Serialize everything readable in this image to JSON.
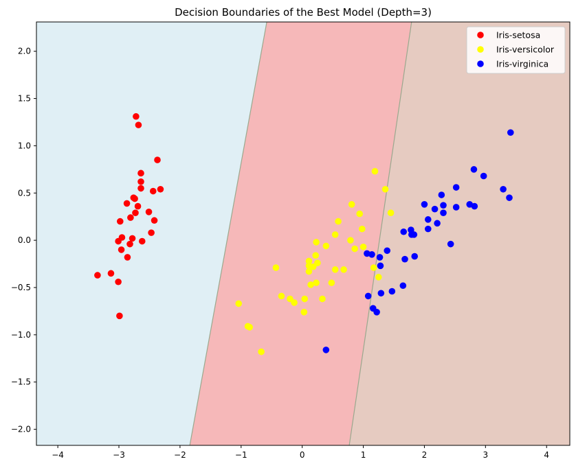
{
  "chart_data": {
    "type": "scatter",
    "title": "Decision Boundaries of the Best Model (Depth=3)",
    "xlabel": "",
    "ylabel": "",
    "xlim": [
      -4.35,
      4.38
    ],
    "ylim": [
      -2.17,
      2.31
    ],
    "xticks": [
      -4,
      -3,
      -2,
      -1,
      0,
      1,
      2,
      3,
      4
    ],
    "xtick_labels": [
      "−4",
      "−3",
      "−2",
      "−1",
      "0",
      "1",
      "2",
      "3",
      "4"
    ],
    "yticks": [
      -2.0,
      -1.5,
      -1.0,
      -0.5,
      0.0,
      0.5,
      1.0,
      1.5,
      2.0
    ],
    "ytick_labels": [
      "−2.0",
      "−1.5",
      "−1.0",
      "−0.5",
      "0.0",
      "0.5",
      "1.0",
      "1.5",
      "2.0"
    ],
    "grid": false,
    "legend_position": "top-right",
    "regions": [
      {
        "class": "Iris-setosa",
        "color": "#e0eff5"
      },
      {
        "class": "Iris-versicolor",
        "color": "#f6b8b9"
      },
      {
        "class": "Iris-virginica",
        "color": "#e6cbc1"
      }
    ],
    "boundaries": [
      {
        "top": [
          -0.58,
          2.31
        ],
        "bottom": [
          -1.84,
          -2.17
        ]
      },
      {
        "top": [
          1.79,
          2.31
        ],
        "bottom": [
          0.77,
          -2.17
        ]
      }
    ],
    "series": [
      {
        "name": "Iris-setosa",
        "color": "#ff0000",
        "points": [
          [
            -2.72,
            1.31
          ],
          [
            -2.68,
            1.22
          ],
          [
            -2.37,
            0.85
          ],
          [
            -2.64,
            0.71
          ],
          [
            -2.64,
            0.62
          ],
          [
            -2.32,
            0.54
          ],
          [
            -2.64,
            0.55
          ],
          [
            -2.44,
            0.52
          ],
          [
            -2.76,
            0.45
          ],
          [
            -2.74,
            0.44
          ],
          [
            -2.87,
            0.39
          ],
          [
            -2.69,
            0.36
          ],
          [
            -2.51,
            0.3
          ],
          [
            -2.73,
            0.29
          ],
          [
            -2.81,
            0.24
          ],
          [
            -2.98,
            0.2
          ],
          [
            -2.42,
            0.21
          ],
          [
            -2.47,
            0.08
          ],
          [
            -2.95,
            0.03
          ],
          [
            -2.78,
            0.02
          ],
          [
            -3.01,
            -0.01
          ],
          [
            -2.62,
            -0.01
          ],
          [
            -2.82,
            -0.04
          ],
          [
            -2.96,
            -0.1
          ],
          [
            -2.86,
            -0.18
          ],
          [
            -3.35,
            -0.37
          ],
          [
            -3.13,
            -0.35
          ],
          [
            -3.01,
            -0.44
          ],
          [
            -2.99,
            -0.8
          ]
        ]
      },
      {
        "name": "Iris-versicolor",
        "color": "#ffff00",
        "points": [
          [
            1.19,
            0.73
          ],
          [
            1.36,
            0.54
          ],
          [
            0.81,
            0.38
          ],
          [
            1.45,
            0.29
          ],
          [
            0.94,
            0.28
          ],
          [
            0.59,
            0.2
          ],
          [
            0.98,
            0.12
          ],
          [
            0.54,
            0.06
          ],
          [
            0.79,
            0.0
          ],
          [
            0.23,
            -0.02
          ],
          [
            0.39,
            -0.06
          ],
          [
            1.0,
            -0.07
          ],
          [
            0.86,
            -0.09
          ],
          [
            0.22,
            -0.16
          ],
          [
            0.25,
            -0.24
          ],
          [
            0.11,
            -0.22
          ],
          [
            0.11,
            -0.27
          ],
          [
            0.18,
            -0.28
          ],
          [
            1.17,
            -0.29
          ],
          [
            -0.43,
            -0.29
          ],
          [
            0.68,
            -0.31
          ],
          [
            0.54,
            -0.31
          ],
          [
            0.11,
            -0.33
          ],
          [
            1.25,
            -0.39
          ],
          [
            0.48,
            -0.45
          ],
          [
            0.23,
            -0.45
          ],
          [
            0.14,
            -0.47
          ],
          [
            -0.34,
            -0.59
          ],
          [
            -0.2,
            -0.62
          ],
          [
            0.04,
            -0.62
          ],
          [
            0.33,
            -0.62
          ],
          [
            -0.13,
            -0.66
          ],
          [
            -1.04,
            -0.67
          ],
          [
            0.03,
            -0.76
          ],
          [
            -0.89,
            -0.91
          ],
          [
            -0.86,
            -0.92
          ],
          [
            -0.67,
            -1.18
          ]
        ]
      },
      {
        "name": "Iris-virginica",
        "color": "#0000ff",
        "points": [
          [
            3.41,
            1.14
          ],
          [
            2.81,
            0.75
          ],
          [
            2.97,
            0.68
          ],
          [
            2.52,
            0.56
          ],
          [
            3.29,
            0.54
          ],
          [
            2.28,
            0.48
          ],
          [
            3.39,
            0.45
          ],
          [
            2.74,
            0.38
          ],
          [
            2.0,
            0.38
          ],
          [
            2.82,
            0.36
          ],
          [
            2.31,
            0.37
          ],
          [
            2.52,
            0.35
          ],
          [
            2.17,
            0.33
          ],
          [
            2.31,
            0.29
          ],
          [
            2.06,
            0.22
          ],
          [
            2.21,
            0.18
          ],
          [
            2.06,
            0.12
          ],
          [
            1.78,
            0.11
          ],
          [
            1.66,
            0.09
          ],
          [
            1.83,
            0.06
          ],
          [
            1.79,
            0.06
          ],
          [
            2.43,
            -0.04
          ],
          [
            1.39,
            -0.11
          ],
          [
            1.06,
            -0.14
          ],
          [
            1.14,
            -0.15
          ],
          [
            1.84,
            -0.17
          ],
          [
            1.27,
            -0.18
          ],
          [
            1.68,
            -0.2
          ],
          [
            1.28,
            -0.27
          ],
          [
            1.65,
            -0.48
          ],
          [
            1.47,
            -0.54
          ],
          [
            1.29,
            -0.56
          ],
          [
            1.08,
            -0.59
          ],
          [
            1.16,
            -0.72
          ],
          [
            1.22,
            -0.76
          ],
          [
            0.39,
            -1.16
          ]
        ]
      }
    ]
  }
}
